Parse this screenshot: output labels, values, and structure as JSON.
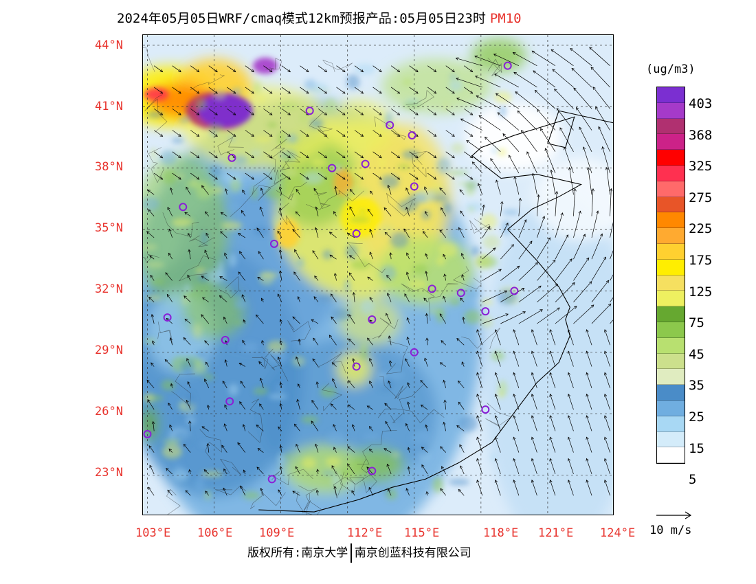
{
  "title": {
    "text": "2024年05月05日WRF/cmaq模式12km预报产品:05月05日23时",
    "species": "PM10"
  },
  "axes": {
    "lat_labels": [
      "44°N",
      "41°N",
      "38°N",
      "35°N",
      "32°N",
      "29°N",
      "26°N",
      "23°N"
    ],
    "lon_labels": [
      "103°E",
      "106°E",
      "109°E",
      "112°E",
      "115°E",
      "118°E",
      "121°E",
      "124°E"
    ],
    "lat_range": [
      21.0,
      44.5
    ],
    "lon_range": [
      102.8,
      124.0
    ]
  },
  "legend": {
    "unit": "(ug/m3)",
    "colors": [
      "#7b2fd1",
      "#a53ac9",
      "#b03070",
      "#cc2288",
      "#ff0000",
      "#ff3050",
      "#ff6a6a",
      "#e85528",
      "#ff8800",
      "#ffaa30",
      "#ffd030",
      "#ffee00",
      "#f6e060",
      "#eef060",
      "#66a830",
      "#8cc84c",
      "#b8e070",
      "#cce08c",
      "#e0ecc0",
      "#4a8cc8",
      "#70aee0",
      "#a8d8f4",
      "#d4ecfa",
      "#ffffff"
    ],
    "labels": [
      "403",
      "368",
      "325",
      "275",
      "225",
      "175",
      "125",
      "75",
      "45",
      "35",
      "25",
      "15",
      "5"
    ]
  },
  "wind_reference": {
    "label": "10 m/s"
  },
  "footer": {
    "left": "版权所有:南京大学",
    "right": "南京创蓝科技有限公司"
  },
  "cities": [
    [
      119.2,
      43.0
    ],
    [
      110.3,
      40.8
    ],
    [
      113.9,
      40.1
    ],
    [
      114.9,
      39.6
    ],
    [
      106.8,
      38.5
    ],
    [
      111.3,
      38.0
    ],
    [
      112.8,
      38.2
    ],
    [
      115.0,
      37.1
    ],
    [
      104.6,
      36.1
    ],
    [
      112.4,
      34.8
    ],
    [
      108.7,
      34.3
    ],
    [
      115.8,
      32.1
    ],
    [
      117.1,
      31.9
    ],
    [
      119.5,
      32.0
    ],
    [
      118.2,
      31.0
    ],
    [
      103.9,
      30.7
    ],
    [
      113.1,
      30.6
    ],
    [
      106.5,
      29.6
    ],
    [
      115.0,
      29.0
    ],
    [
      112.4,
      28.3
    ],
    [
      106.7,
      26.6
    ],
    [
      118.2,
      26.2
    ],
    [
      103.0,
      25.0
    ],
    [
      108.6,
      22.8
    ],
    [
      113.1,
      23.2
    ]
  ]
}
